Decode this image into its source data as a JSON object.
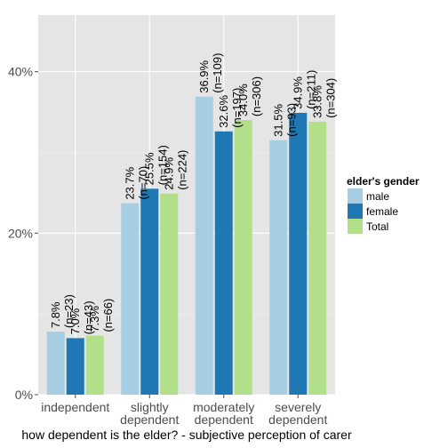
{
  "chart_data": {
    "type": "bar",
    "xlabel": "how dependent is the elder? - subjective perception of carer",
    "ylabel": "",
    "ylim": [
      0,
      0.4
    ],
    "y_ticks": [
      "0%",
      "20%",
      "40%"
    ],
    "y_tick_values": [
      0,
      0.2,
      0.4
    ],
    "grid": true,
    "legend_position": "right",
    "legend_title": "elder's gender",
    "categories": [
      [
        "independent"
      ],
      [
        "slightly",
        "dependent"
      ],
      [
        "moderately",
        "dependent"
      ],
      [
        "severely",
        "dependent"
      ]
    ],
    "series": [
      {
        "name": "male",
        "color": "#a6cee3",
        "values": [
          0.078,
          0.237,
          0.369,
          0.315
        ],
        "labels": [
          "7.8%",
          "23.7%",
          "36.9%",
          "31.5%"
        ],
        "n_labels": [
          "(n=23)",
          "(n=70)",
          "(n=109)",
          "(n=93)"
        ]
      },
      {
        "name": "female",
        "color": "#1f78b4",
        "values": [
          0.07,
          0.255,
          0.326,
          0.349
        ],
        "labels": [
          "7.0%",
          "25.5%",
          "32.6%",
          "34.9%"
        ],
        "n_labels": [
          "(n=43)",
          "(n=154)",
          "(n=197)",
          "(n=211)"
        ]
      },
      {
        "name": "Total",
        "color": "#b2df8a",
        "values": [
          0.073,
          0.249,
          0.34,
          0.338
        ],
        "labels": [
          "7.3%",
          "24.9%",
          "34.0%",
          "33.8%"
        ],
        "n_labels": [
          "(n=66)",
          "(n=224)",
          "(n=306)",
          "(n=304)"
        ]
      }
    ]
  }
}
